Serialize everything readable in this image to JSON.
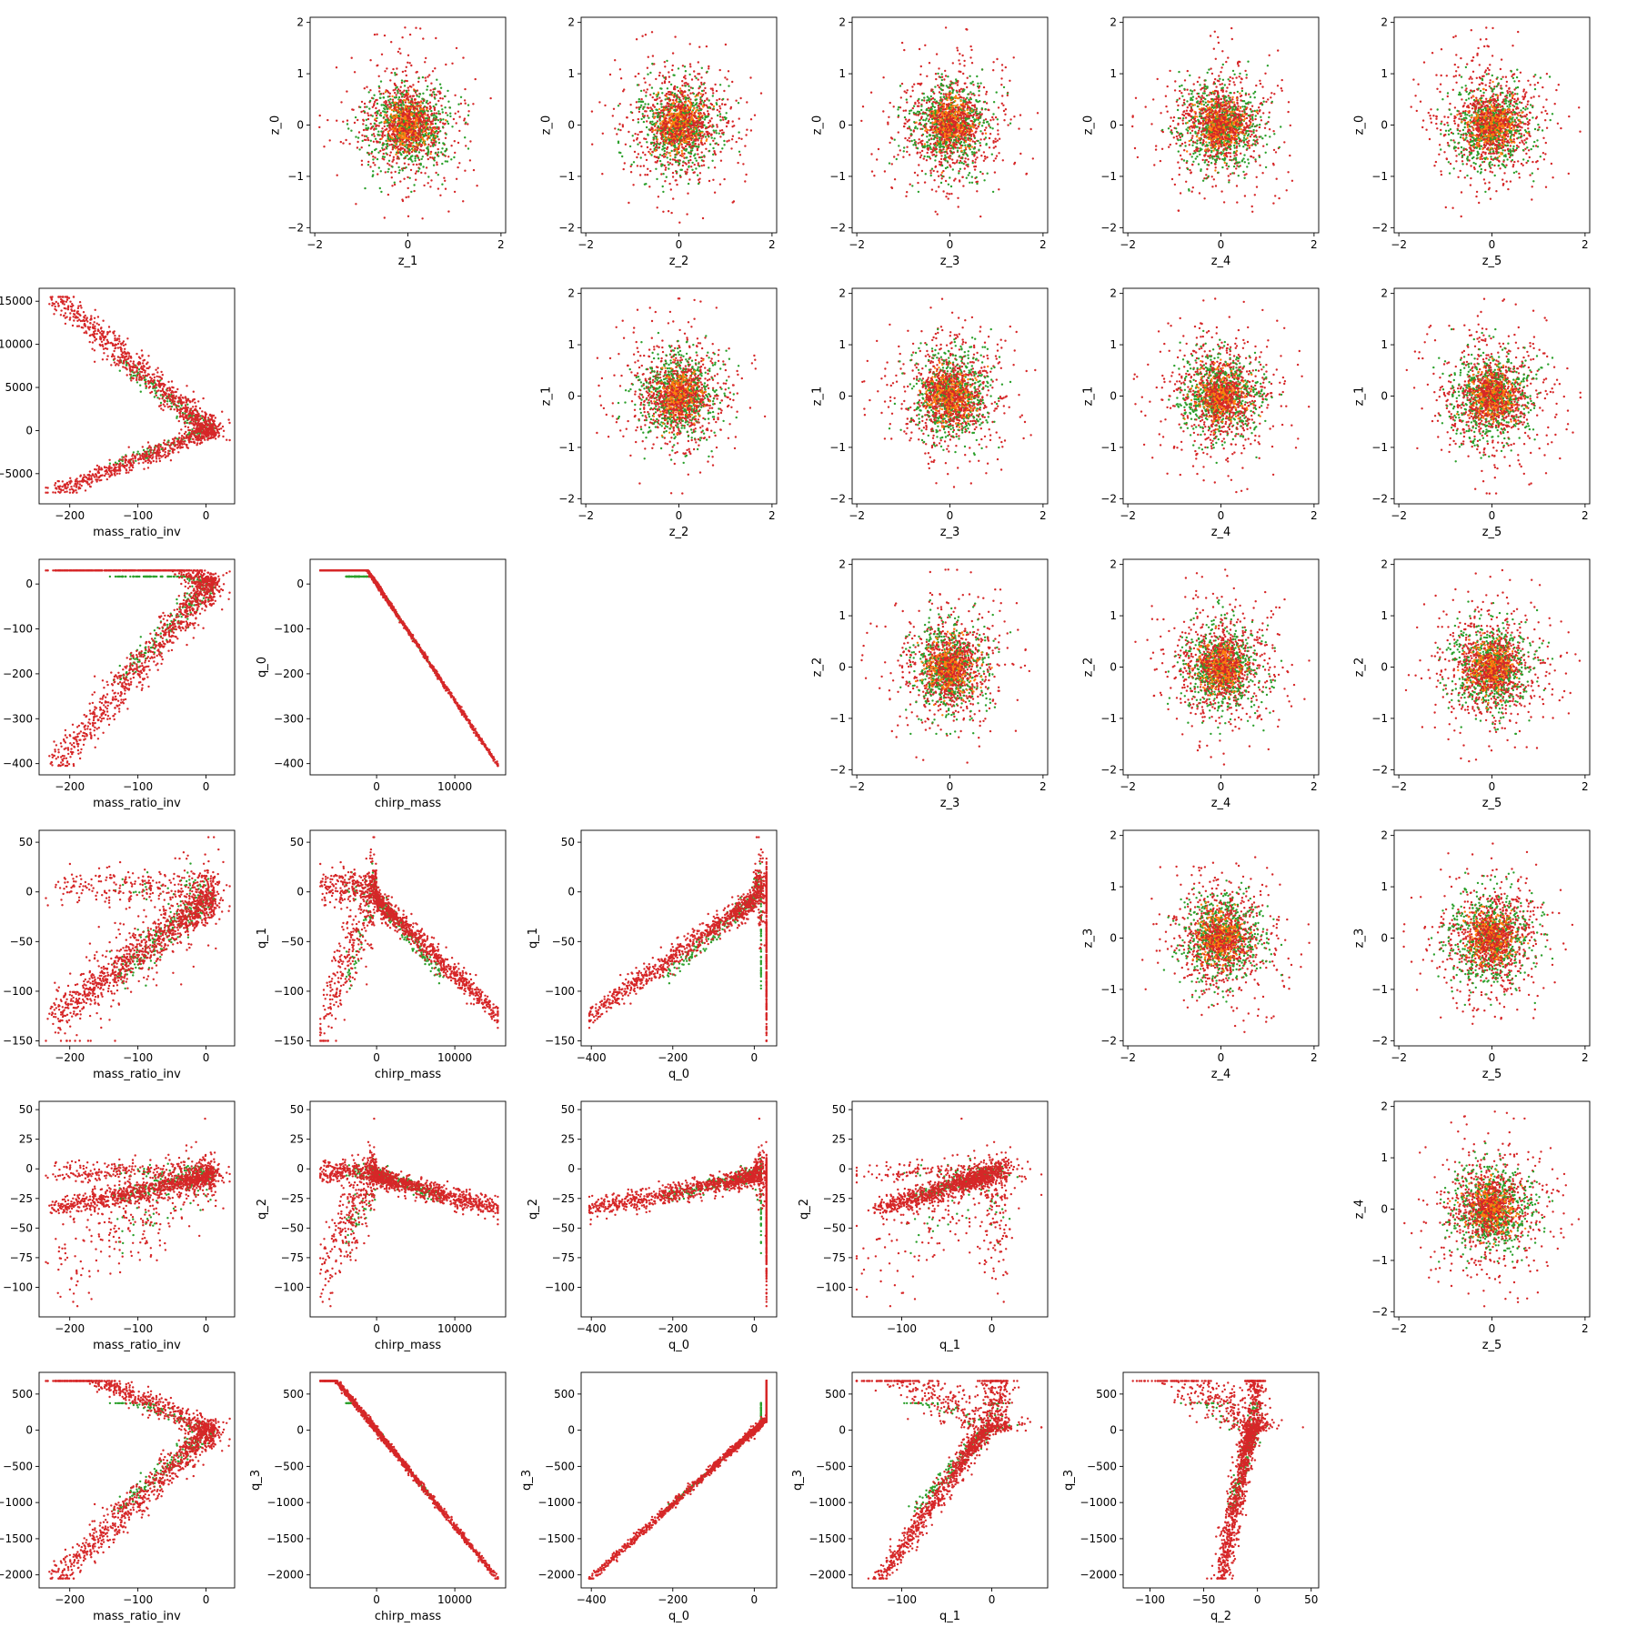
{
  "chart_data": {
    "type": "scatter",
    "description_layout": "6x6 pair-plot grid (rows r0..r5, columns c0..c5); upper triangle: latent z variables, lower triangle: physical parameters",
    "series_colors": {
      "green": "#2ca02c",
      "orange": "#ff7f0e",
      "red": "#d62728"
    },
    "axes_ranges": {
      "z": [
        -2.1,
        2.1
      ],
      "mass_ratio_inv": [
        -245,
        42
      ],
      "chirp_mass": [
        -8500,
        16500
      ],
      "q_0": [
        -425,
        55
      ],
      "q_1": [
        -155,
        62
      ],
      "q_2": [
        -125,
        57
      ],
      "q_3": [
        -2180,
        800
      ]
    },
    "panels": [
      {
        "row": 0,
        "col": 1,
        "kind": "blob",
        "x": "z",
        "y": "z",
        "xlabel": "z_1",
        "ylabel": "z_0",
        "xticks": [
          "−2",
          "0",
          "2"
        ],
        "yticks": [
          "−2",
          "−1",
          "0",
          "1",
          "2"
        ]
      },
      {
        "row": 0,
        "col": 2,
        "kind": "blob",
        "x": "z",
        "y": "z",
        "xlabel": "z_2",
        "ylabel": "z_0",
        "xticks": [
          "−2",
          "0",
          "2"
        ],
        "yticks": [
          "−2",
          "−1",
          "0",
          "1",
          "2"
        ]
      },
      {
        "row": 0,
        "col": 3,
        "kind": "blob",
        "x": "z",
        "y": "z",
        "xlabel": "z_3",
        "ylabel": "z_0",
        "xticks": [
          "−2",
          "0",
          "2"
        ],
        "yticks": [
          "−2",
          "−1",
          "0",
          "1",
          "2"
        ]
      },
      {
        "row": 0,
        "col": 4,
        "kind": "blob",
        "x": "z",
        "y": "z",
        "xlabel": "z_4",
        "ylabel": "z_0",
        "xticks": [
          "−2",
          "0",
          "2"
        ],
        "yticks": [
          "−2",
          "−1",
          "0",
          "1",
          "2"
        ]
      },
      {
        "row": 0,
        "col": 5,
        "kind": "blob",
        "x": "z",
        "y": "z",
        "xlabel": "z_5",
        "ylabel": "z_0",
        "xticks": [
          "−2",
          "0",
          "2"
        ],
        "yticks": [
          "−2",
          "−1",
          "0",
          "1",
          "2"
        ]
      },
      {
        "row": 1,
        "col": 0,
        "kind": "mr_cm",
        "x": "mass_ratio_inv",
        "y": "chirp_mass",
        "xlabel": "mass_ratio_inv",
        "ylabel": "chirp_mass",
        "xticks": [
          "−200",
          "−100",
          "0"
        ],
        "yticks": [
          "−5000",
          "0",
          "5000",
          "10000",
          "15000"
        ]
      },
      {
        "row": 1,
        "col": 2,
        "kind": "blob",
        "x": "z",
        "y": "z",
        "xlabel": "z_2",
        "ylabel": "z_1",
        "xticks": [
          "−2",
          "0",
          "2"
        ],
        "yticks": [
          "−2",
          "−1",
          "0",
          "1",
          "2"
        ]
      },
      {
        "row": 1,
        "col": 3,
        "kind": "blob",
        "x": "z",
        "y": "z",
        "xlabel": "z_3",
        "ylabel": "z_1",
        "xticks": [
          "−2",
          "0",
          "2"
        ],
        "yticks": [
          "−2",
          "−1",
          "0",
          "1",
          "2"
        ]
      },
      {
        "row": 1,
        "col": 4,
        "kind": "blob",
        "x": "z",
        "y": "z",
        "xlabel": "z_4",
        "ylabel": "z_1",
        "xticks": [
          "−2",
          "0",
          "2"
        ],
        "yticks": [
          "−2",
          "−1",
          "0",
          "1",
          "2"
        ]
      },
      {
        "row": 1,
        "col": 5,
        "kind": "blob",
        "x": "z",
        "y": "z",
        "xlabel": "z_5",
        "ylabel": "z_1",
        "xticks": [
          "−2",
          "0",
          "2"
        ],
        "yticks": [
          "−2",
          "−1",
          "0",
          "1",
          "2"
        ]
      },
      {
        "row": 2,
        "col": 0,
        "kind": "mr_q0",
        "x": "mass_ratio_inv",
        "y": "q_0",
        "xlabel": "mass_ratio_inv",
        "ylabel": "q_0",
        "xticks": [
          "−200",
          "−100",
          "0"
        ],
        "yticks": [
          "−400",
          "−300",
          "−200",
          "−100",
          "0"
        ]
      },
      {
        "row": 2,
        "col": 1,
        "kind": "cm_q0",
        "x": "chirp_mass",
        "y": "q_0",
        "xlabel": "chirp_mass",
        "ylabel": "q_0",
        "xticks": [
          "0",
          "10000"
        ],
        "yticks": [
          "−400",
          "−300",
          "−200",
          "−100",
          "0"
        ]
      },
      {
        "row": 2,
        "col": 3,
        "kind": "blob",
        "x": "z",
        "y": "z",
        "xlabel": "z_3",
        "ylabel": "z_2",
        "xticks": [
          "−2",
          "0",
          "2"
        ],
        "yticks": [
          "−2",
          "−1",
          "0",
          "1",
          "2"
        ]
      },
      {
        "row": 2,
        "col": 4,
        "kind": "blob",
        "x": "z",
        "y": "z",
        "xlabel": "z_4",
        "ylabel": "z_2",
        "xticks": [
          "−2",
          "0",
          "2"
        ],
        "yticks": [
          "−2",
          "−1",
          "0",
          "1",
          "2"
        ]
      },
      {
        "row": 2,
        "col": 5,
        "kind": "blob",
        "x": "z",
        "y": "z",
        "xlabel": "z_5",
        "ylabel": "z_2",
        "xticks": [
          "−2",
          "0",
          "2"
        ],
        "yticks": [
          "−2",
          "−1",
          "0",
          "1",
          "2"
        ]
      },
      {
        "row": 3,
        "col": 0,
        "kind": "mr_q1",
        "x": "mass_ratio_inv",
        "y": "q_1",
        "xlabel": "mass_ratio_inv",
        "ylabel": "q_1",
        "xticks": [
          "−200",
          "−100",
          "0"
        ],
        "yticks": [
          "−150",
          "−100",
          "−50",
          "0",
          "50"
        ]
      },
      {
        "row": 3,
        "col": 1,
        "kind": "cm_q1",
        "x": "chirp_mass",
        "y": "q_1",
        "xlabel": "chirp_mass",
        "ylabel": "q_1",
        "xticks": [
          "0",
          "10000"
        ],
        "yticks": [
          "−150",
          "−100",
          "−50",
          "0",
          "50"
        ]
      },
      {
        "row": 3,
        "col": 2,
        "kind": "q0_q1",
        "x": "q_0",
        "y": "q_1",
        "xlabel": "q_0",
        "ylabel": "q_1",
        "xticks": [
          "−400",
          "−200",
          "0"
        ],
        "yticks": [
          "−150",
          "−100",
          "−50",
          "0",
          "50"
        ]
      },
      {
        "row": 3,
        "col": 4,
        "kind": "blob",
        "x": "z",
        "y": "z",
        "xlabel": "z_4",
        "ylabel": "z_3",
        "xticks": [
          "−2",
          "0",
          "2"
        ],
        "yticks": [
          "−2",
          "−1",
          "0",
          "1",
          "2"
        ]
      },
      {
        "row": 3,
        "col": 5,
        "kind": "blob",
        "x": "z",
        "y": "z",
        "xlabel": "z_5",
        "ylabel": "z_3",
        "xticks": [
          "−2",
          "0",
          "2"
        ],
        "yticks": [
          "−2",
          "−1",
          "0",
          "1",
          "2"
        ]
      },
      {
        "row": 4,
        "col": 0,
        "kind": "mr_q2",
        "x": "mass_ratio_inv",
        "y": "q_2",
        "xlabel": "mass_ratio_inv",
        "ylabel": "q_2",
        "xticks": [
          "−200",
          "−100",
          "0"
        ],
        "yticks": [
          "−100",
          "−75",
          "−50",
          "−25",
          "0",
          "25",
          "50"
        ]
      },
      {
        "row": 4,
        "col": 1,
        "kind": "cm_q2",
        "x": "chirp_mass",
        "y": "q_2",
        "xlabel": "chirp_mass",
        "ylabel": "q_2",
        "xticks": [
          "0",
          "10000"
        ],
        "yticks": [
          "−100",
          "−75",
          "−50",
          "−25",
          "0",
          "25",
          "50"
        ]
      },
      {
        "row": 4,
        "col": 2,
        "kind": "q0_q2",
        "x": "q_0",
        "y": "q_2",
        "xlabel": "q_0",
        "ylabel": "q_2",
        "xticks": [
          "−400",
          "−200",
          "0"
        ],
        "yticks": [
          "−100",
          "−75",
          "−50",
          "−25",
          "0",
          "25",
          "50"
        ]
      },
      {
        "row": 4,
        "col": 3,
        "kind": "q1_q2",
        "x": "q_1",
        "y": "q_2",
        "xlabel": "q_1",
        "ylabel": "q_2",
        "xticks": [
          "−100",
          "0"
        ],
        "yticks": [
          "−100",
          "−75",
          "−50",
          "−25",
          "0",
          "25",
          "50"
        ]
      },
      {
        "row": 4,
        "col": 5,
        "kind": "blob",
        "x": "z",
        "y": "z",
        "xlabel": "z_5",
        "ylabel": "z_4",
        "xticks": [
          "−2",
          "0",
          "2"
        ],
        "yticks": [
          "−2",
          "−1",
          "0",
          "1",
          "2"
        ]
      },
      {
        "row": 5,
        "col": 0,
        "kind": "mr_q3",
        "x": "mass_ratio_inv",
        "y": "q_3",
        "xlabel": "mass_ratio_inv",
        "ylabel": "q_3",
        "xticks": [
          "−200",
          "−100",
          "0"
        ],
        "yticks": [
          "−2000",
          "−1500",
          "−1000",
          "−500",
          "0",
          "500"
        ]
      },
      {
        "row": 5,
        "col": 1,
        "kind": "cm_q3",
        "x": "chirp_mass",
        "y": "q_3",
        "xlabel": "chirp_mass",
        "ylabel": "q_3",
        "xticks": [
          "0",
          "10000"
        ],
        "yticks": [
          "−2000",
          "−1500",
          "−1000",
          "−500",
          "0",
          "500"
        ]
      },
      {
        "row": 5,
        "col": 2,
        "kind": "q0_q3",
        "x": "q_0",
        "y": "q_3",
        "xlabel": "q_0",
        "ylabel": "q_3",
        "xticks": [
          "−400",
          "−200",
          "0"
        ],
        "yticks": [
          "−2000",
          "−1500",
          "−1000",
          "−500",
          "0",
          "500"
        ]
      },
      {
        "row": 5,
        "col": 3,
        "kind": "q1_q3",
        "x": "q_1",
        "y": "q_3",
        "xlabel": "q_1",
        "ylabel": "q_3",
        "xticks": [
          "−100",
          "0"
        ],
        "yticks": [
          "−2000",
          "−1500",
          "−1000",
          "−500",
          "0",
          "500"
        ]
      },
      {
        "row": 5,
        "col": 4,
        "kind": "q2_q3",
        "x": "q_2",
        "y": "q_3",
        "xlabel": "q_2",
        "ylabel": "q_3",
        "xticks": [
          "−100",
          "−50",
          "0",
          "50"
        ],
        "yticks": [
          "−2000",
          "−1500",
          "−1000",
          "−500",
          "0",
          "500"
        ]
      }
    ]
  }
}
